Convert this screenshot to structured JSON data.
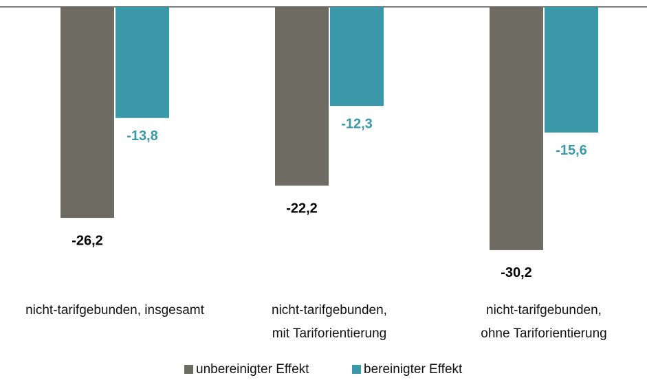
{
  "chart_data": {
    "type": "bar",
    "categories": [
      "nicht-tarifgebunden, insgesamt",
      "nicht-tarifgebunden,\nmit Tariforientierung",
      "nicht-tarifgebunden,\nohne Tariforientierung"
    ],
    "series": [
      {
        "name": "unbereinigter Effekt",
        "color": "#6d6b62",
        "values": [
          -26.2,
          -22.2,
          -30.2
        ],
        "value_labels": [
          "-26,2",
          "-22,2",
          "-30,2"
        ],
        "label_color": "#000000"
      },
      {
        "name": "bereinigter Effekt",
        "color": "#3a98a8",
        "values": [
          -13.8,
          -12.3,
          -15.6
        ],
        "value_labels": [
          "-13,8",
          "-12,3",
          "-15,6"
        ],
        "label_color": "#3a98a8"
      }
    ],
    "legend": "bottom"
  }
}
